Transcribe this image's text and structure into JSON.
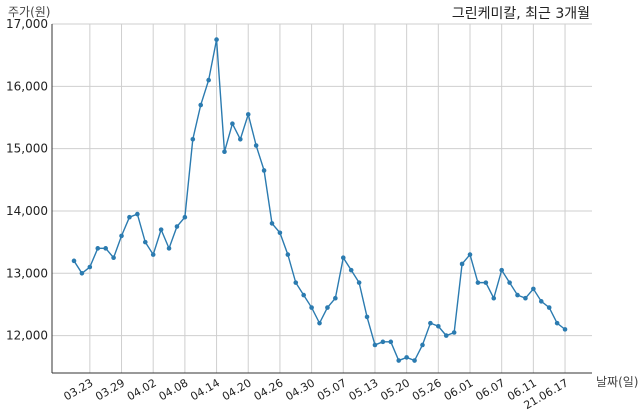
{
  "chart_data": {
    "type": "line",
    "title": "그린케미칼, 최근 3개월",
    "xlabel": "날짜(일)",
    "ylabel": "주가(원)",
    "ylim": [
      11400,
      17000
    ],
    "yticks": [
      12000,
      13000,
      14000,
      15000,
      16000,
      17000
    ],
    "ytick_labels": [
      "12,000",
      "13,000",
      "14,000",
      "15,000",
      "16,000",
      "17,000"
    ],
    "xtick_labels": [
      "03.23",
      "03.29",
      "04.02",
      "04.08",
      "04.14",
      "04.20",
      "04.26",
      "04.30",
      "05.07",
      "05.13",
      "05.20",
      "05.26",
      "06.01",
      "06.07",
      "06.11",
      "21.06.17"
    ],
    "grid": true,
    "color": "#2b7bb0",
    "series": [
      {
        "values": [
          13200,
          13000,
          13100,
          13400,
          13400,
          13250,
          13600,
          13900,
          13950,
          13500,
          13300,
          13700,
          13400,
          13750,
          13900,
          15150,
          15700,
          16100,
          16750,
          14950,
          15400,
          15150,
          15550,
          15050,
          14650,
          13800,
          13650,
          13300,
          12850,
          12650,
          12450,
          12200,
          12450,
          12600,
          13250,
          13050,
          12850,
          12300,
          11850,
          11900,
          11900,
          11600,
          11650,
          11600,
          11850,
          12200,
          12150,
          12000,
          12050,
          13150,
          13300,
          12850,
          12850,
          12600,
          13050,
          12850,
          12650,
          12600,
          12750,
          12550,
          12450,
          12200,
          12100
        ]
      }
    ]
  }
}
